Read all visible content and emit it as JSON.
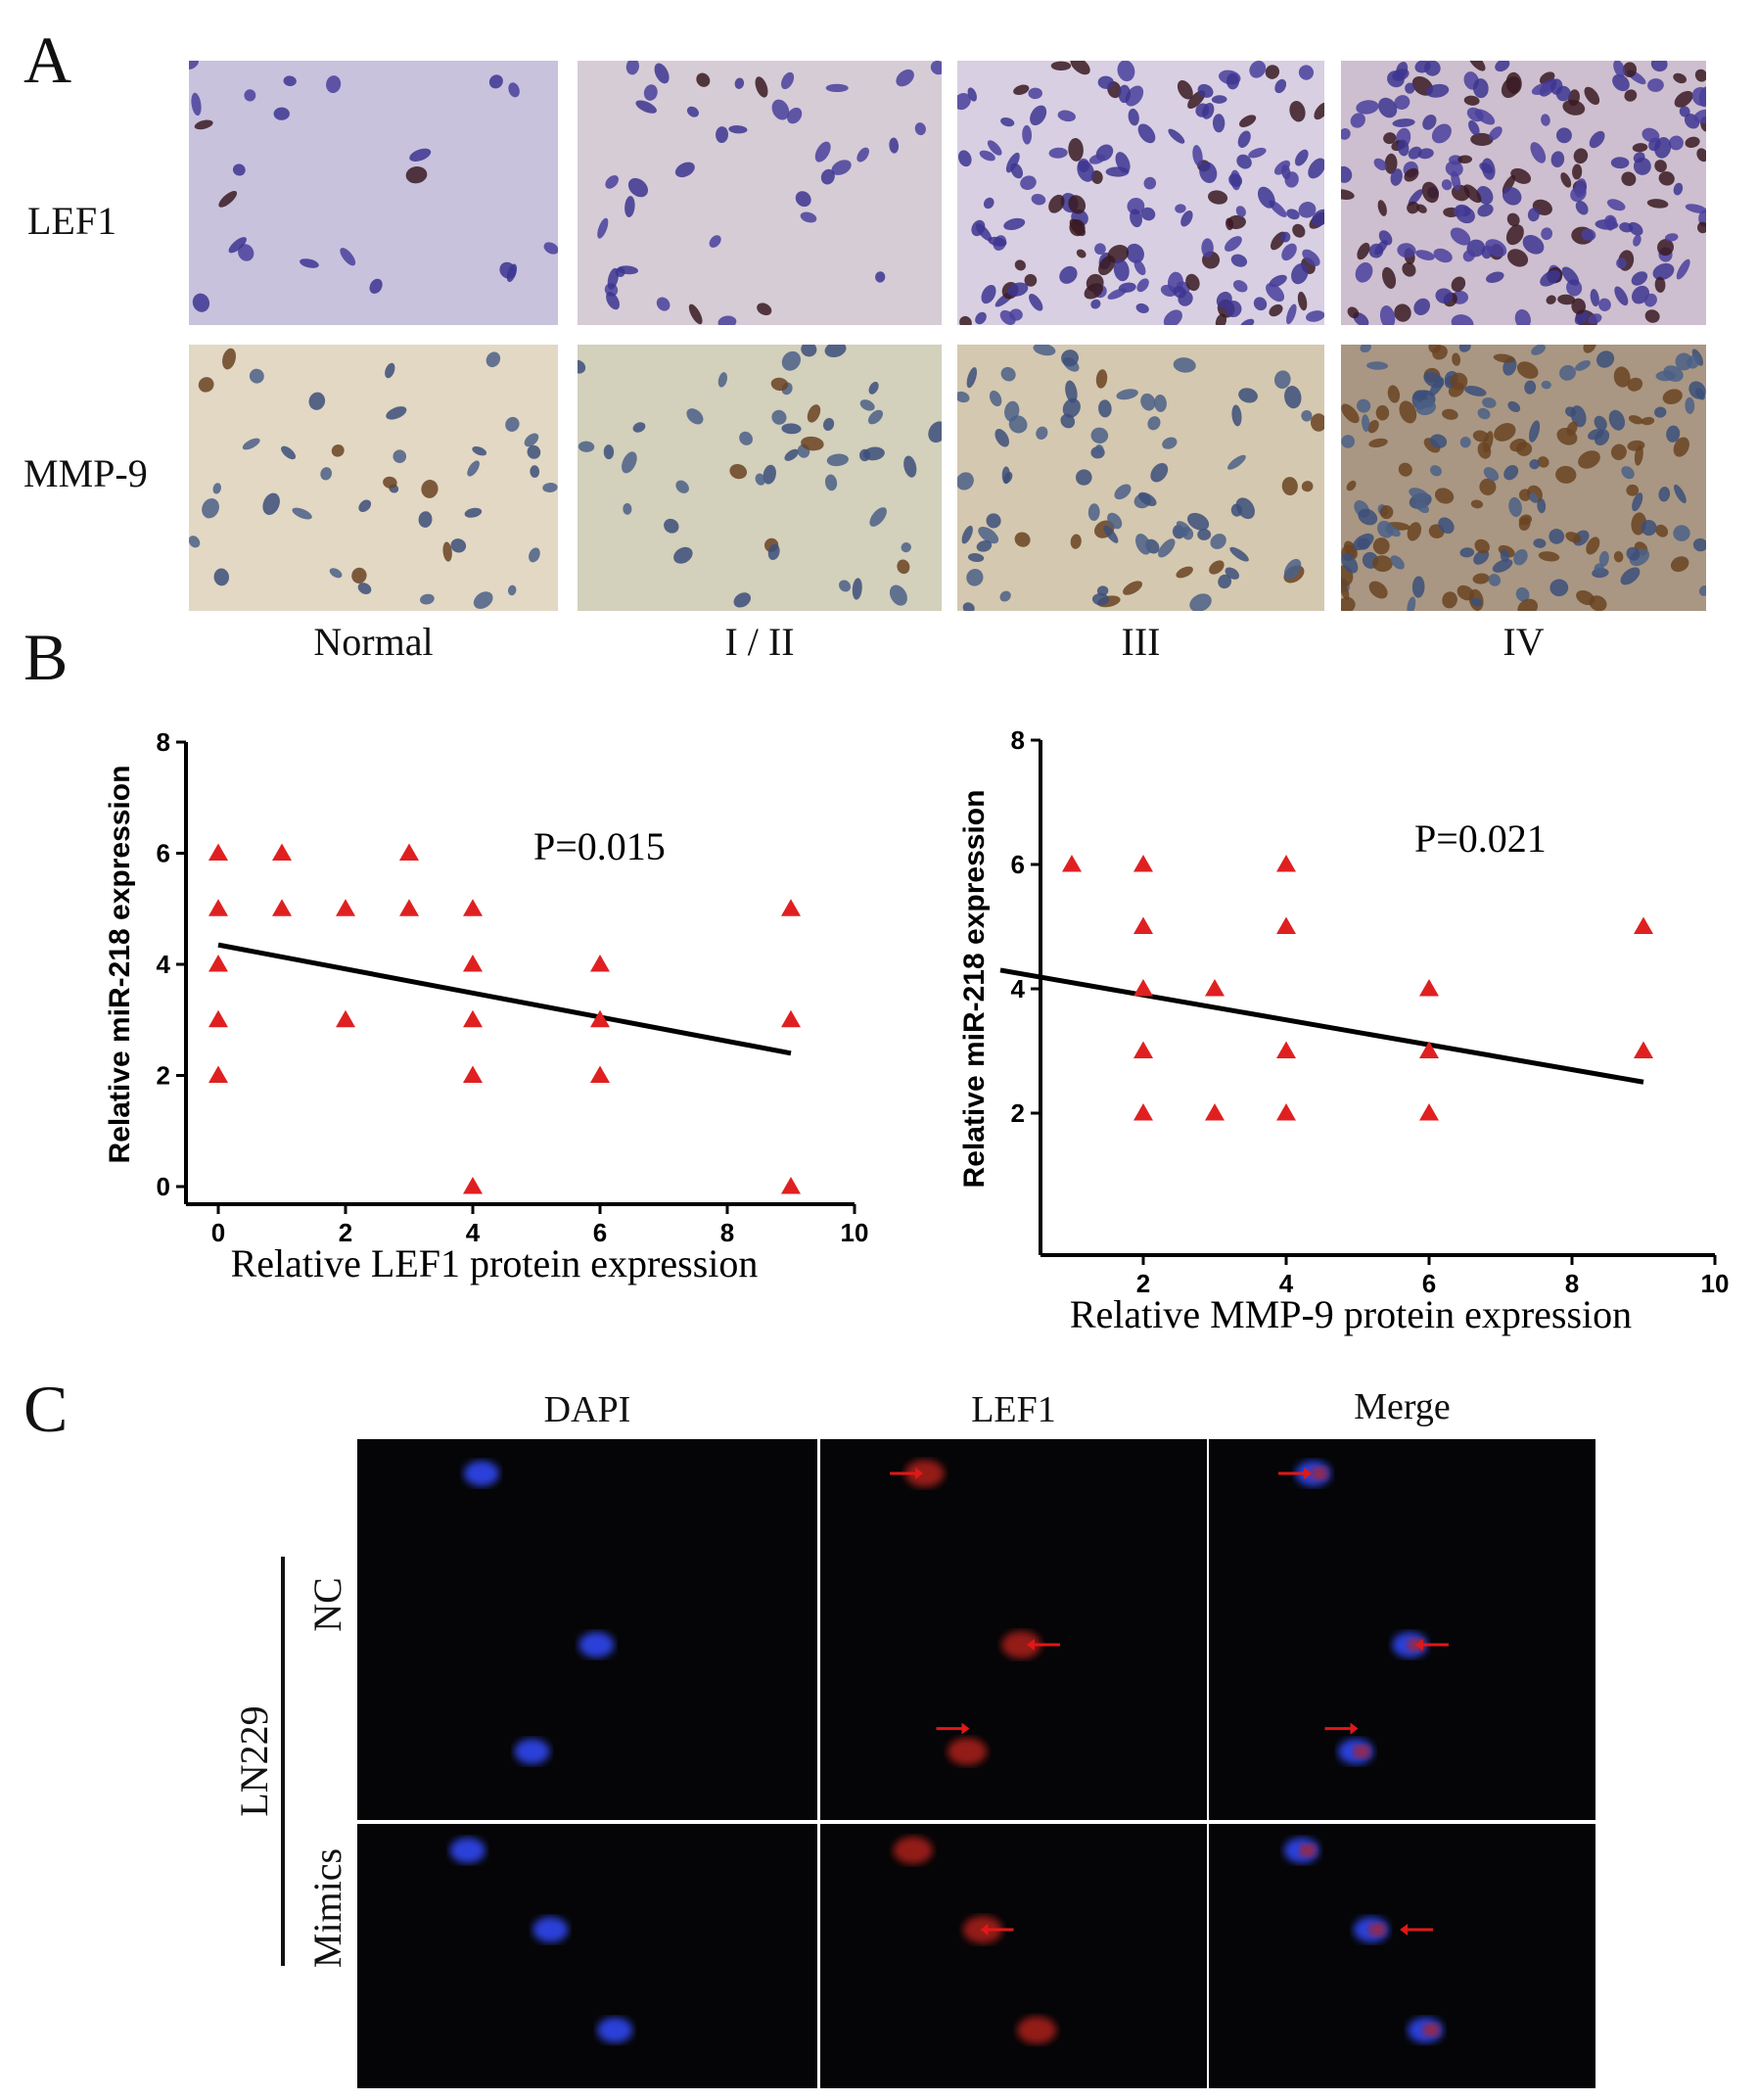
{
  "panels": {
    "a": {
      "letter": "A",
      "rows": [
        "LEF1",
        "MMP-9"
      ],
      "columns": [
        "Normal",
        "I / II",
        "III",
        "IV"
      ]
    },
    "b": {
      "letter": "B"
    },
    "c": {
      "letter": "C",
      "columns": [
        "DAPI",
        "LEF1",
        "Merge"
      ],
      "cell_line": "LN229",
      "rows": [
        "NC",
        "Mimics"
      ]
    }
  },
  "colors": {
    "marker": "#e02020",
    "trend_line": "#000000",
    "dapi": "#2a40d8",
    "lef1_signal": "#b8201a",
    "arrow": "#e01818"
  },
  "chart_data": [
    {
      "type": "scatter",
      "title": "",
      "xlabel": "Relative LEF1 protein expression",
      "ylabel": "Relative miR-218 expression",
      "xlim": [
        0,
        10
      ],
      "ylim": [
        0,
        8
      ],
      "xticks": [
        0,
        2,
        4,
        6,
        8,
        10
      ],
      "yticks": [
        0,
        2,
        4,
        6,
        8
      ],
      "annotation": "P=0.015",
      "marker": "triangle",
      "points": [
        [
          0,
          6
        ],
        [
          0,
          5
        ],
        [
          0,
          4
        ],
        [
          0,
          3
        ],
        [
          0,
          2
        ],
        [
          1,
          6
        ],
        [
          1,
          5
        ],
        [
          2,
          5
        ],
        [
          2,
          3
        ],
        [
          3,
          6
        ],
        [
          3,
          5
        ],
        [
          4,
          5
        ],
        [
          4,
          4
        ],
        [
          4,
          3
        ],
        [
          4,
          2
        ],
        [
          4,
          0
        ],
        [
          6,
          4
        ],
        [
          6,
          3
        ],
        [
          6,
          2
        ],
        [
          9,
          5
        ],
        [
          9,
          3
        ],
        [
          9,
          0
        ]
      ],
      "trendline": {
        "x": [
          0,
          9
        ],
        "y": [
          4.35,
          2.4
        ]
      }
    },
    {
      "type": "scatter",
      "title": "",
      "xlabel": "Relative MMP-9 protein expression",
      "ylabel": "Relative miR-218 expression",
      "xlim": [
        0,
        10
      ],
      "ylim": [
        0,
        8
      ],
      "xticks": [
        2,
        4,
        6,
        8,
        10
      ],
      "yticks": [
        2,
        4,
        6,
        8
      ],
      "annotation": "P=0.021",
      "marker": "triangle",
      "points": [
        [
          1,
          6
        ],
        [
          2,
          6
        ],
        [
          2,
          5
        ],
        [
          2,
          4
        ],
        [
          2,
          3
        ],
        [
          2,
          2
        ],
        [
          3,
          4
        ],
        [
          3,
          2
        ],
        [
          4,
          6
        ],
        [
          4,
          5
        ],
        [
          4,
          3
        ],
        [
          4,
          2
        ],
        [
          6,
          4
        ],
        [
          6,
          3
        ],
        [
          6,
          2
        ],
        [
          9,
          5
        ],
        [
          9,
          3
        ]
      ],
      "trendline": {
        "x": [
          0,
          9
        ],
        "y": [
          4.3,
          2.5
        ]
      }
    }
  ]
}
